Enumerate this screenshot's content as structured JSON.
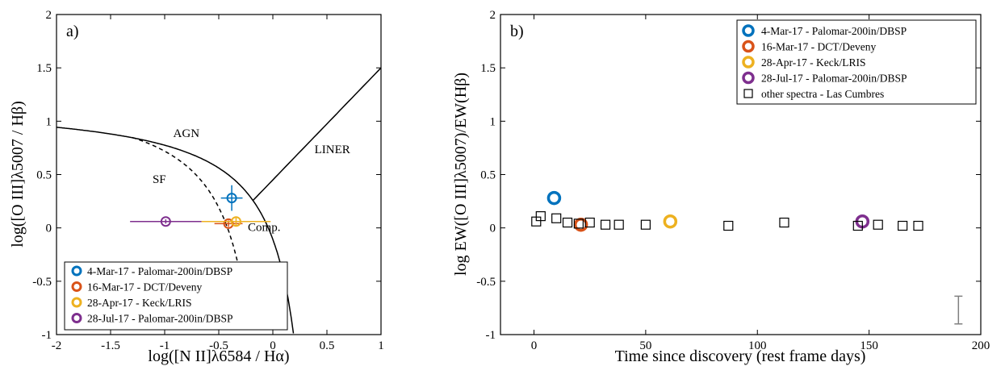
{
  "chart_data": [
    {
      "type": "scatter",
      "panel_label": "a)",
      "xlabel": "log([N II]λ6584 / Hα)",
      "ylabel": "log([O III]λ5007 / Hβ)",
      "xlim": [
        -2,
        1
      ],
      "ylim": [
        -1,
        2
      ],
      "xticks": [
        "-2",
        "-1.5",
        "-1",
        "-0.5",
        "0",
        "0.5",
        "1"
      ],
      "yticks": [
        "-1",
        "-0.5",
        "0",
        "0.5",
        "1",
        "1.5",
        "2"
      ],
      "grid": false,
      "legend_position": "bottom-left",
      "region_labels": [
        {
          "text": "AGN",
          "x": -0.8,
          "y": 0.85
        },
        {
          "text": "SF",
          "x": -1.05,
          "y": 0.42
        },
        {
          "text": "LINER",
          "x": 0.55,
          "y": 0.7
        },
        {
          "text": "Comp.",
          "x": -0.08,
          "y": -0.03
        }
      ],
      "series": [
        {
          "name": "4-Mar-17 - Palomar-200in/DBSP",
          "color": "#0072BD",
          "x": [
            -0.38
          ],
          "y": [
            0.28
          ],
          "xerr": [
            0.1
          ],
          "yerr": [
            0.12
          ]
        },
        {
          "name": "16-Mar-17 - DCT/Deveny",
          "color": "#D95319",
          "x": [
            -0.41
          ],
          "y": [
            0.04
          ],
          "xerr": [
            0.13
          ],
          "yerr": [
            0.03
          ]
        },
        {
          "name": "28-Apr-17 - Keck/LRIS",
          "color": "#EDB120",
          "x": [
            -0.34
          ],
          "y": [
            0.06
          ],
          "xerr": [
            0.32
          ],
          "yerr": [
            0.04
          ]
        },
        {
          "name": "28-Jul-17 - Palomar-200in/DBSP",
          "color": "#7E2F8E",
          "x": [
            -0.99
          ],
          "y": [
            0.06
          ],
          "xerr": [
            0.33
          ],
          "yerr": [
            0.02
          ]
        }
      ]
    },
    {
      "type": "scatter",
      "panel_label": "b)",
      "xlabel": "Time since discovery (rest frame days)",
      "ylabel": "log EW([O III]λ5007)/EW(Hβ)",
      "xlim": [
        -15,
        200
      ],
      "ylim": [
        -1,
        2
      ],
      "xticks": [
        "0",
        "50",
        "100",
        "150",
        "200"
      ],
      "yticks": [
        "-1",
        "-0.5",
        "0",
        "0.5",
        "1",
        "1.5",
        "2"
      ],
      "grid": false,
      "legend_position": "top-right",
      "series": [
        {
          "name": "4-Mar-17 - Palomar-200in/DBSP",
          "color": "#0072BD",
          "x": [
            9
          ],
          "y": [
            0.28
          ]
        },
        {
          "name": "16-Mar-17 - DCT/Deveny",
          "color": "#D95319",
          "x": [
            21
          ],
          "y": [
            0.03
          ]
        },
        {
          "name": "28-Apr-17 - Keck/LRIS",
          "color": "#EDB120",
          "x": [
            61
          ],
          "y": [
            0.06
          ]
        },
        {
          "name": "28-Jul-17 - Palomar-200in/DBSP",
          "color": "#7E2F8E",
          "x": [
            147
          ],
          "y": [
            0.06
          ]
        },
        {
          "name": "other spectra - Las Cumbres",
          "color": "#000000",
          "x": [
            1,
            3,
            10,
            15,
            20,
            25,
            32,
            38,
            50,
            87,
            112,
            145,
            154,
            165,
            172
          ],
          "y": [
            0.06,
            0.11,
            0.09,
            0.05,
            0.04,
            0.05,
            0.03,
            0.03,
            0.03,
            0.02,
            0.05,
            0.02,
            0.03,
            0.02,
            0.02
          ]
        }
      ],
      "typical_error_bar": {
        "x": 190,
        "y": -0.77,
        "half_height": 0.13,
        "color": "#808080"
      }
    }
  ]
}
